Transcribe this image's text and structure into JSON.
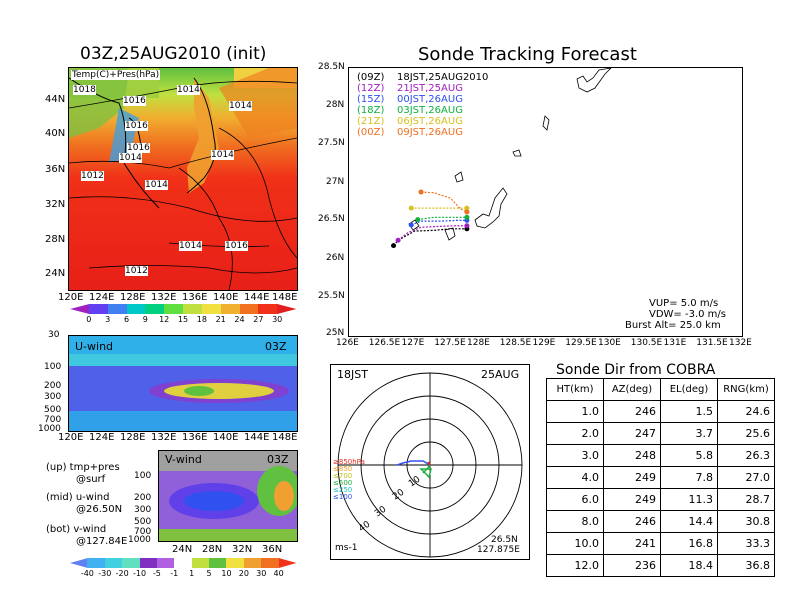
{
  "map_panel": {
    "title": "03Z,25AUG2010 (init)",
    "overlay_label": "Temp(C)+Pres(hPa)",
    "lat_labels": [
      "44N",
      "40N",
      "36N",
      "32N",
      "28N",
      "24N"
    ],
    "lon_labels": [
      "120E",
      "124E",
      "128E",
      "132E",
      "136E",
      "140E",
      "144E",
      "148E"
    ],
    "isobars": [
      "1018",
      "1016",
      "1014",
      "1014",
      "1016",
      "1016",
      "1014",
      "1014",
      "1012",
      "1014",
      "1014",
      "1016",
      "1012"
    ],
    "colorbar": [
      "0",
      "3",
      "6",
      "9",
      "12",
      "15",
      "18",
      "21",
      "24",
      "27",
      "30"
    ],
    "colors": [
      "#a020c0",
      "#6040f0",
      "#4080f0",
      "#00c8c8",
      "#00d080",
      "#60e040",
      "#c0e040",
      "#f0e040",
      "#f0b030",
      "#f07020",
      "#f03018",
      "#e02020"
    ]
  },
  "u_panel": {
    "label": "U-wind",
    "time": "03Z",
    "levels": [
      "30",
      "100",
      "200",
      "300",
      "500",
      "700",
      "1000"
    ],
    "lon_labels": [
      "120E",
      "124E",
      "128E",
      "132E",
      "136E",
      "140E",
      "144E",
      "148E"
    ]
  },
  "v_panel": {
    "label": "V-wind",
    "time": "03Z",
    "levels": [
      "100",
      "200",
      "300",
      "500",
      "700",
      "1000"
    ],
    "lat_labels": [
      "24N",
      "28N",
      "32N",
      "36N"
    ],
    "colorbar": [
      "-40",
      "-30",
      "-20",
      "-10",
      "-5",
      "-1",
      "1",
      "5",
      "10",
      "20",
      "30",
      "40"
    ]
  },
  "legend_text": {
    "up": "(up) tmp+pres",
    "up2": "@surf",
    "mid": "(mid) u-wind",
    "mid2": "@26.50N",
    "bot": "(bot) v-wind",
    "bot2": "@127.84E"
  },
  "track_panel": {
    "title": "Sonde Tracking Forecast",
    "entries": [
      {
        "utc": "(09Z)",
        "local": "18JST,25AUG2010",
        "color": "#000000"
      },
      {
        "utc": "(12Z)",
        "local": "21JST,25AUG",
        "color": "#a020c0"
      },
      {
        "utc": "(15Z)",
        "local": "00JST,26AUG",
        "color": "#3050f0"
      },
      {
        "utc": "(18Z)",
        "local": "03JST,26AUG",
        "color": "#10b040"
      },
      {
        "utc": "(21Z)",
        "local": "06JST,26AUG",
        "color": "#d8c020"
      },
      {
        "utc": "(00Z)",
        "local": "09JST,26AUG",
        "color": "#f07020"
      }
    ],
    "lat_labels": [
      "28.5N",
      "28N",
      "27.5N",
      "27N",
      "26.5N",
      "26N",
      "25.5N",
      "25N"
    ],
    "lon_labels": [
      "126E",
      "126.5E",
      "127E",
      "127.5E",
      "128E",
      "128.5E",
      "129E",
      "129.5E",
      "130E",
      "130.5E",
      "131E",
      "131.5E",
      "132E"
    ],
    "vup": "VUP=  5.0  m/s",
    "vdw": "VDW=  -3.0  m/s",
    "burst": "Burst Alt=  25.0  km"
  },
  "chart_data": {
    "type": "scatter",
    "title": "Sonde Tracking Forecast",
    "xlim": [
      126,
      132
    ],
    "ylim": [
      25,
      28.5
    ],
    "series": [
      {
        "name": "(09Z) 18JST,25AUG2010",
        "x": [
          126.68,
          126.75,
          127.0,
          127.3,
          127.55,
          127.8
        ],
        "y": [
          26.18,
          26.25,
          26.37,
          26.38,
          26.4,
          26.4
        ]
      },
      {
        "name": "(12Z) 21JST,25AUG",
        "x": [
          126.75,
          126.9,
          127.1,
          127.35,
          127.6,
          127.8
        ],
        "y": [
          26.25,
          26.35,
          26.42,
          26.43,
          26.44,
          26.44
        ]
      },
      {
        "name": "(15Z) 00JST,26AUG",
        "x": [
          126.95,
          127.1,
          127.4,
          127.65,
          127.8
        ],
        "y": [
          26.45,
          26.5,
          26.5,
          26.51,
          26.51
        ]
      },
      {
        "name": "(18Z) 03JST,26AUG",
        "x": [
          127.05,
          127.3,
          127.55,
          127.8
        ],
        "y": [
          26.52,
          26.55,
          26.55,
          26.55
        ]
      },
      {
        "name": "(21Z) 06JST,26AUG",
        "x": [
          126.95,
          127.2,
          127.5,
          127.8
        ],
        "y": [
          26.67,
          26.67,
          26.67,
          26.67
        ]
      },
      {
        "name": "(00Z) 09JST,26AUG",
        "x": [
          127.1,
          127.3,
          127.55,
          127.7,
          127.8
        ],
        "y": [
          26.88,
          26.87,
          26.8,
          26.66,
          26.62
        ]
      }
    ]
  },
  "polar_panel": {
    "time_left": "18JST",
    "time_right": "25AUG",
    "unit": "ms-1",
    "location_lat": "26.5N",
    "location_lon": "127.875E",
    "ring_labels": [
      "10",
      "20",
      "30",
      "40"
    ],
    "legend": [
      {
        "text": "≥850hPa",
        "color": "#e03020"
      },
      {
        "text": "≤850",
        "color": "#f0a020"
      },
      {
        "text": "≤700",
        "color": "#c0c020"
      },
      {
        "text": "≤500",
        "color": "#20b040"
      },
      {
        "text": "≤250",
        "color": "#20c0c0"
      },
      {
        "text": "≤100",
        "color": "#3050f0"
      }
    ]
  },
  "sonde_table": {
    "title": "Sonde Dir from COBRA",
    "headers": [
      "HT(km)",
      "AZ(deg)",
      "EL(deg)",
      "RNG(km)"
    ],
    "rows": [
      [
        "1.0",
        "246",
        "1.5",
        "24.6"
      ],
      [
        "2.0",
        "247",
        "3.7",
        "25.6"
      ],
      [
        "3.0",
        "248",
        "5.8",
        "26.3"
      ],
      [
        "4.0",
        "249",
        "7.8",
        "27.0"
      ],
      [
        "6.0",
        "249",
        "11.3",
        "28.7"
      ],
      [
        "8.0",
        "246",
        "14.4",
        "30.8"
      ],
      [
        "10.0",
        "241",
        "16.8",
        "33.3"
      ],
      [
        "12.0",
        "236",
        "18.4",
        "36.8"
      ]
    ]
  }
}
